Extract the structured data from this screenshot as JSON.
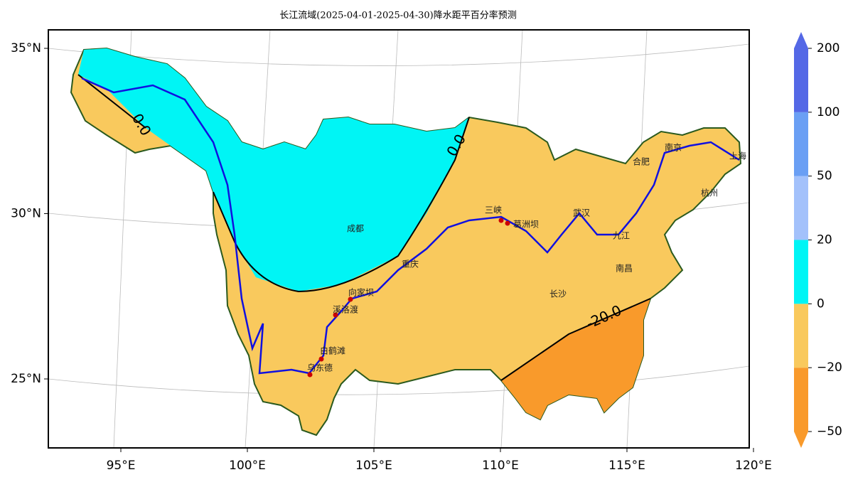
{
  "title": "长江流域(2025-04-01-2025-04-30)降水距平百分率预测",
  "lon_ticks": [
    {
      "value": 95,
      "label": "95°E"
    },
    {
      "value": 100,
      "label": "100°E"
    },
    {
      "value": 105,
      "label": "105°E"
    },
    {
      "value": 110,
      "label": "110°E"
    },
    {
      "value": 115,
      "label": "115°E"
    },
    {
      "value": 120,
      "label": "120°E"
    }
  ],
  "lat_ticks": [
    {
      "value": 25,
      "label": "25°N"
    },
    {
      "value": 30,
      "label": "30°N"
    },
    {
      "value": 35,
      "label": "35°N"
    }
  ],
  "colorbar": {
    "levels": [
      {
        "value": -50,
        "label": "−50"
      },
      {
        "value": -20,
        "label": "−20"
      },
      0,
      20,
      50,
      100,
      200
    ],
    "colors": [
      "#f99a2b",
      "#f9c95d",
      "#00f5f5",
      "#a3c1fb",
      "#6a9ff4",
      "#5468e6"
    ]
  },
  "cities": [
    "成都",
    "重庆",
    "三峡",
    "葛洲坝",
    "向家坝",
    "溪洛渡",
    "白鹤滩",
    "乌东德",
    "武汉",
    "九江",
    "长沙",
    "南昌",
    "合肥",
    "南京",
    "杭州",
    "上海"
  ],
  "contour_labels": [
    "0.0",
    "0.0",
    "-20.0"
  ]
}
